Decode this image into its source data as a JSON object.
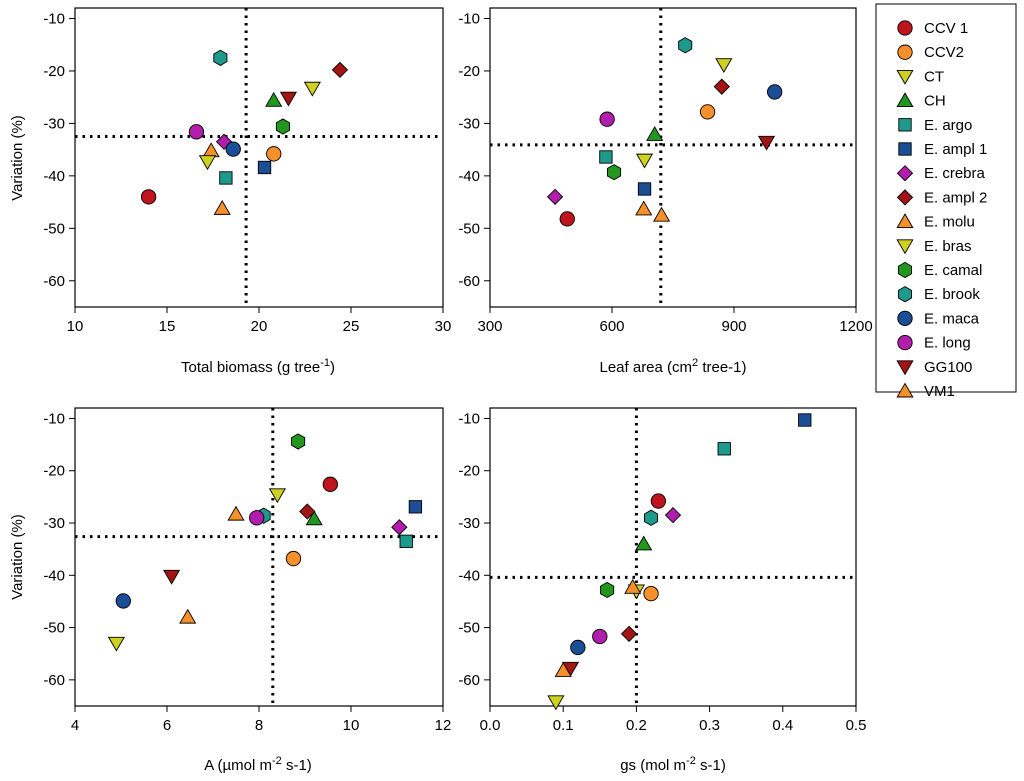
{
  "legend": [
    {
      "label": "CCV 1",
      "color": "#c0141c",
      "marker": "circle"
    },
    {
      "label": "CCV2",
      "color": "#f5902a",
      "marker": "circle"
    },
    {
      "label": "CT",
      "color": "#cdd11f",
      "marker": "tri-down"
    },
    {
      "label": "CH",
      "color": "#22961e",
      "marker": "tri-up"
    },
    {
      "label": "E. argo",
      "color": "#1e9a8c",
      "marker": "square"
    },
    {
      "label": "E. ampl 1",
      "color": "#1c4e96",
      "marker": "square"
    },
    {
      "label": "E. crebra",
      "color": "#b21eac",
      "marker": "diamond"
    },
    {
      "label": "E. ampl 2",
      "color": "#a31414",
      "marker": "diamond"
    },
    {
      "label": "E. molu",
      "color": "#f5902a",
      "marker": "tri-up"
    },
    {
      "label": "E. bras",
      "color": "#cdd11f",
      "marker": "tri-down"
    },
    {
      "label": "E. camal",
      "color": "#22961e",
      "marker": "hexagon"
    },
    {
      "label": "E. brook",
      "color": "#1e9a8c",
      "marker": "hexagon"
    },
    {
      "label": "E. maca",
      "color": "#1c4e96",
      "marker": "circle"
    },
    {
      "label": "E. long",
      "color": "#b21eac",
      "marker": "circle"
    },
    {
      "label": "GG100",
      "color": "#a31414",
      "marker": "tri-down"
    },
    {
      "label": "VM1",
      "color": "#f5902a",
      "marker": "tri-up"
    }
  ],
  "chart_data": [
    {
      "id": "biomass",
      "type": "scatter",
      "xlabel": "Total biomass (g tree",
      "xlabel_sup": "-1",
      "xlabel_end": ")",
      "ylabel": "Variation (%)",
      "xlim": [
        10,
        30
      ],
      "ylim": [
        -65,
        -8
      ],
      "xticks": [
        10,
        15,
        20,
        25,
        30
      ],
      "yticks": [
        -10,
        -20,
        -30,
        -40,
        -50,
        -60
      ],
      "ref_x": 19.3,
      "ref_y": -32.5,
      "points": [
        {
          "series": "CCV 1",
          "x": 14.0,
          "y": -44.0
        },
        {
          "series": "CCV2",
          "x": 20.8,
          "y": -35.8
        },
        {
          "series": "CT",
          "x": 22.9,
          "y": -23.3
        },
        {
          "series": "CH",
          "x": 20.8,
          "y": -25.6
        },
        {
          "series": "E. argo",
          "x": 18.2,
          "y": -40.4
        },
        {
          "series": "E. ampl 1",
          "x": 20.3,
          "y": -38.4
        },
        {
          "series": "E. crebra",
          "x": 18.1,
          "y": -33.5
        },
        {
          "series": "E. ampl 2",
          "x": 24.4,
          "y": -19.8
        },
        {
          "series": "E. molu",
          "x": 17.4,
          "y": -35.2
        },
        {
          "series": "E. bras",
          "x": 17.2,
          "y": -37.3
        },
        {
          "series": "E. camal",
          "x": 21.3,
          "y": -30.6
        },
        {
          "series": "E. brook",
          "x": 17.9,
          "y": -17.5
        },
        {
          "series": "E. maca",
          "x": 18.6,
          "y": -34.9
        },
        {
          "series": "E. long",
          "x": 16.6,
          "y": -31.6
        },
        {
          "series": "GG100",
          "x": 21.6,
          "y": -25.2
        },
        {
          "series": "VM1",
          "x": 18.0,
          "y": -46.2
        }
      ]
    },
    {
      "id": "leafarea",
      "type": "scatter",
      "xlabel": "Leaf area (cm",
      "xlabel_sup": "2",
      "xlabel_end": " tree-1)",
      "ylabel": "",
      "xlim": [
        300,
        1200
      ],
      "ylim": [
        -65,
        -8
      ],
      "xticks": [
        300,
        600,
        900,
        1200
      ],
      "yticks": [
        -10,
        -20,
        -30,
        -40,
        -50,
        -60
      ],
      "ref_x": 720,
      "ref_y": -34.1,
      "points": [
        {
          "series": "CCV 1",
          "x": 490,
          "y": -48.2
        },
        {
          "series": "CCV2",
          "x": 835,
          "y": -27.8
        },
        {
          "series": "CT",
          "x": 875,
          "y": -18.8
        },
        {
          "series": "CH",
          "x": 705,
          "y": -32.1
        },
        {
          "series": "E. argo",
          "x": 585,
          "y": -36.4
        },
        {
          "series": "E. ampl 1",
          "x": 680,
          "y": -42.5
        },
        {
          "series": "E. crebra",
          "x": 460,
          "y": -44.0
        },
        {
          "series": "E. ampl 2",
          "x": 870,
          "y": -23.0
        },
        {
          "series": "E. molu",
          "x": 678,
          "y": -46.3
        },
        {
          "series": "E. bras",
          "x": 680,
          "y": -37.0
        },
        {
          "series": "E. camal",
          "x": 605,
          "y": -39.3
        },
        {
          "series": "E. brook",
          "x": 780,
          "y": -15.1
        },
        {
          "series": "E. maca",
          "x": 1000,
          "y": -24.0
        },
        {
          "series": "E. long",
          "x": 588,
          "y": -29.2
        },
        {
          "series": "GG100",
          "x": 980,
          "y": -33.6
        },
        {
          "series": "VM1",
          "x": 722,
          "y": -47.5
        }
      ]
    },
    {
      "id": "photosynthesis",
      "type": "scatter",
      "xlabel": "A (µmol m",
      "xlabel_sup": "-2",
      "xlabel_end": " s-1)",
      "ylabel": "Variation (%)",
      "xlim": [
        4,
        12
      ],
      "ylim": [
        -65,
        -8
      ],
      "xticks": [
        4,
        6,
        8,
        10,
        12
      ],
      "yticks": [
        -10,
        -20,
        -30,
        -40,
        -50,
        -60
      ],
      "ref_x": 8.3,
      "ref_y": -32.6,
      "points": [
        {
          "series": "CCV 1",
          "x": 9.55,
          "y": -22.6
        },
        {
          "series": "CCV2",
          "x": 8.75,
          "y": -36.8
        },
        {
          "series": "CT",
          "x": 8.4,
          "y": -24.6
        },
        {
          "series": "CH",
          "x": 9.2,
          "y": -29.2
        },
        {
          "series": "E. argo",
          "x": 11.2,
          "y": -33.5
        },
        {
          "series": "E. ampl 1",
          "x": 11.4,
          "y": -26.9
        },
        {
          "series": "E. crebra",
          "x": 11.05,
          "y": -30.8
        },
        {
          "series": "E. ampl 2",
          "x": 9.05,
          "y": -27.8
        },
        {
          "series": "E. molu",
          "x": 7.5,
          "y": -28.3
        },
        {
          "series": "E. bras",
          "x": 4.9,
          "y": -53.0
        },
        {
          "series": "E. camal",
          "x": 8.85,
          "y": -14.4
        },
        {
          "series": "E. brook",
          "x": 8.1,
          "y": -28.6
        },
        {
          "series": "E. maca",
          "x": 5.05,
          "y": -44.9
        },
        {
          "series": "E. long",
          "x": 7.95,
          "y": -29.0
        },
        {
          "series": "GG100",
          "x": 6.1,
          "y": -40.2
        },
        {
          "series": "VM1",
          "x": 6.45,
          "y": -48.0
        }
      ]
    },
    {
      "id": "conductance",
      "type": "scatter",
      "xlabel": "gs (mol m",
      "xlabel_sup": "-2",
      "xlabel_end": " s-1)",
      "ylabel": "",
      "xlim": [
        0,
        0.5
      ],
      "ylim": [
        -65,
        -8
      ],
      "xticks": [
        0,
        0.1,
        0.2,
        0.3,
        0.4,
        0.5
      ],
      "xtick_labels": [
        "0.0",
        "0.1",
        "0.2",
        "0.3",
        "0.4",
        "0.5"
      ],
      "yticks": [
        -10,
        -20,
        -30,
        -40,
        -50,
        -60
      ],
      "ref_x": 0.2,
      "ref_y": -40.4,
      "points": [
        {
          "series": "CCV 1",
          "x": 0.23,
          "y": -25.8
        },
        {
          "series": "CCV2",
          "x": 0.22,
          "y": -43.5
        },
        {
          "series": "CT",
          "x": 0.2,
          "y": -43.0
        },
        {
          "series": "CH",
          "x": 0.21,
          "y": -34.0
        },
        {
          "series": "E. argo",
          "x": 0.32,
          "y": -15.8
        },
        {
          "series": "E. ampl 1",
          "x": 0.43,
          "y": -10.3
        },
        {
          "series": "E. crebra",
          "x": 0.25,
          "y": -28.5
        },
        {
          "series": "E. ampl 2",
          "x": 0.19,
          "y": -51.2
        },
        {
          "series": "E. molu",
          "x": 0.195,
          "y": -42.3
        },
        {
          "series": "E. bras",
          "x": 0.09,
          "y": -64.2
        },
        {
          "series": "E. camal",
          "x": 0.16,
          "y": -42.8
        },
        {
          "series": "E. brook",
          "x": 0.22,
          "y": -29.0
        },
        {
          "series": "E. maca",
          "x": 0.12,
          "y": -53.8
        },
        {
          "series": "E. long",
          "x": 0.15,
          "y": -51.7
        },
        {
          "series": "GG100",
          "x": 0.11,
          "y": -57.8
        },
        {
          "series": "VM1",
          "x": 0.1,
          "y": -58.2
        }
      ]
    }
  ]
}
